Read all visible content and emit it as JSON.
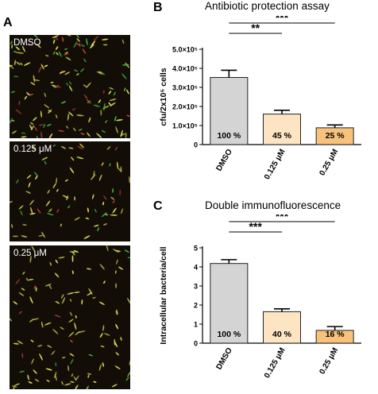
{
  "panels": {
    "a": "A",
    "b": "B",
    "c": "C"
  },
  "micrographs": [
    {
      "label": "DMSO"
    },
    {
      "label": "0.125 μM"
    },
    {
      "label": "0.25 μM"
    }
  ],
  "colors": {
    "bar_dmso": "#d4d4d4",
    "bar_low": "#fde4c3",
    "bar_high": "#f8c27c",
    "micro_bg": "#130d08",
    "bacteria_yellow": "#d8dc52",
    "bacteria_green": "#43b13c",
    "bacteria_red": "#c2403a"
  },
  "chart_data": [
    {
      "type": "bar",
      "title": "Antibiotic protection assay",
      "ylabel": "cfu/2x10⁵ cells",
      "categories": [
        "DMSO",
        "0.125 μM",
        "0.25 μM"
      ],
      "values": [
        352000,
        160000,
        88000
      ],
      "errors": [
        38000,
        20000,
        15000
      ],
      "bar_labels": [
        "100 %",
        "45 %",
        "25 %"
      ],
      "ylim": [
        0,
        500000
      ],
      "yticks": [
        0,
        100000,
        200000,
        300000,
        400000,
        500000
      ],
      "ytick_labels": [
        "0",
        "1.0×10⁵",
        "2.0×10⁵",
        "3.0×10⁵",
        "4.0×10⁵",
        "5.0×10⁵"
      ],
      "significance": [
        {
          "from": 0,
          "to": 1,
          "label": "**"
        },
        {
          "from": 0,
          "to": 2,
          "label": "***"
        }
      ]
    },
    {
      "type": "bar",
      "title": "Double immunofluorescence",
      "ylabel": "Intracellular bacteria/cell",
      "categories": [
        "DMSO",
        "0.125 μM",
        "0.25 μM"
      ],
      "values": [
        4.18,
        1.65,
        0.67
      ],
      "errors": [
        0.2,
        0.15,
        0.2
      ],
      "bar_labels": [
        "100 %",
        "40 %",
        "16 %"
      ],
      "ylim": [
        0,
        5
      ],
      "yticks": [
        0,
        1,
        2,
        3,
        4,
        5
      ],
      "ytick_labels": [
        "0",
        "1",
        "2",
        "3",
        "4",
        "5"
      ],
      "significance": [
        {
          "from": 0,
          "to": 1,
          "label": "***"
        },
        {
          "from": 0,
          "to": 2,
          "label": "***"
        }
      ]
    }
  ]
}
